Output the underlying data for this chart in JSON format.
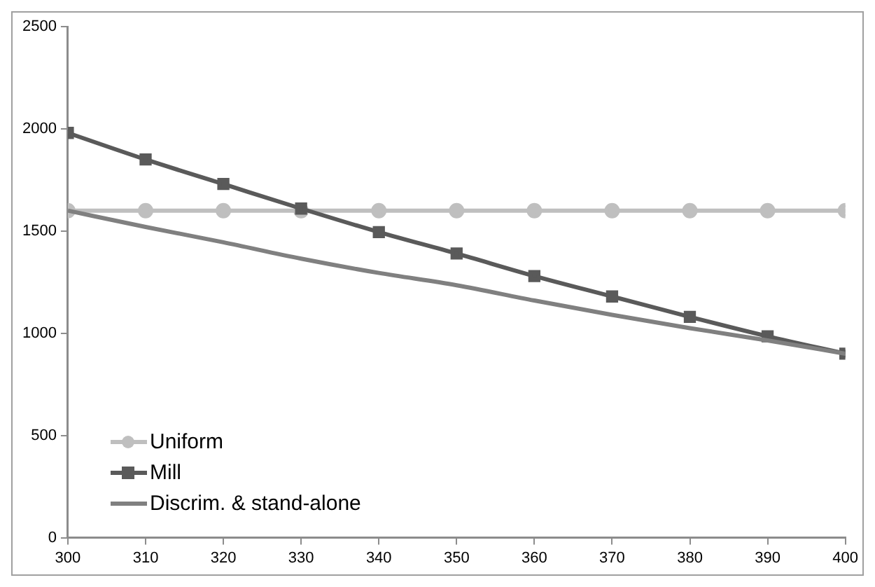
{
  "chart_data": {
    "type": "line",
    "x": [
      300,
      310,
      320,
      330,
      340,
      350,
      360,
      370,
      380,
      390,
      400
    ],
    "series": [
      {
        "name": "Uniform",
        "color": "#bfbfbf",
        "marker": "circle",
        "values": [
          1600,
          1600,
          1600,
          1600,
          1600,
          1600,
          1600,
          1600,
          1600,
          1600,
          1600
        ]
      },
      {
        "name": "Mill",
        "color": "#5a5a5a",
        "marker": "square",
        "values": [
          1980,
          1850,
          1730,
          1610,
          1495,
          1390,
          1280,
          1180,
          1080,
          985,
          900
        ]
      },
      {
        "name": "Discrim. & stand-alone",
        "color": "#808080",
        "marker": "none",
        "values": [
          1600,
          1520,
          1445,
          1365,
          1295,
          1235,
          1160,
          1090,
          1025,
          965,
          900
        ]
      }
    ],
    "xlim": [
      300,
      400
    ],
    "xticks": [
      300,
      310,
      320,
      330,
      340,
      350,
      360,
      370,
      380,
      390,
      400
    ],
    "ylim": [
      0,
      2500
    ],
    "yticks": [
      0,
      500,
      1000,
      1500,
      2000,
      2500
    ],
    "grid": false,
    "legend": "bottom left"
  }
}
